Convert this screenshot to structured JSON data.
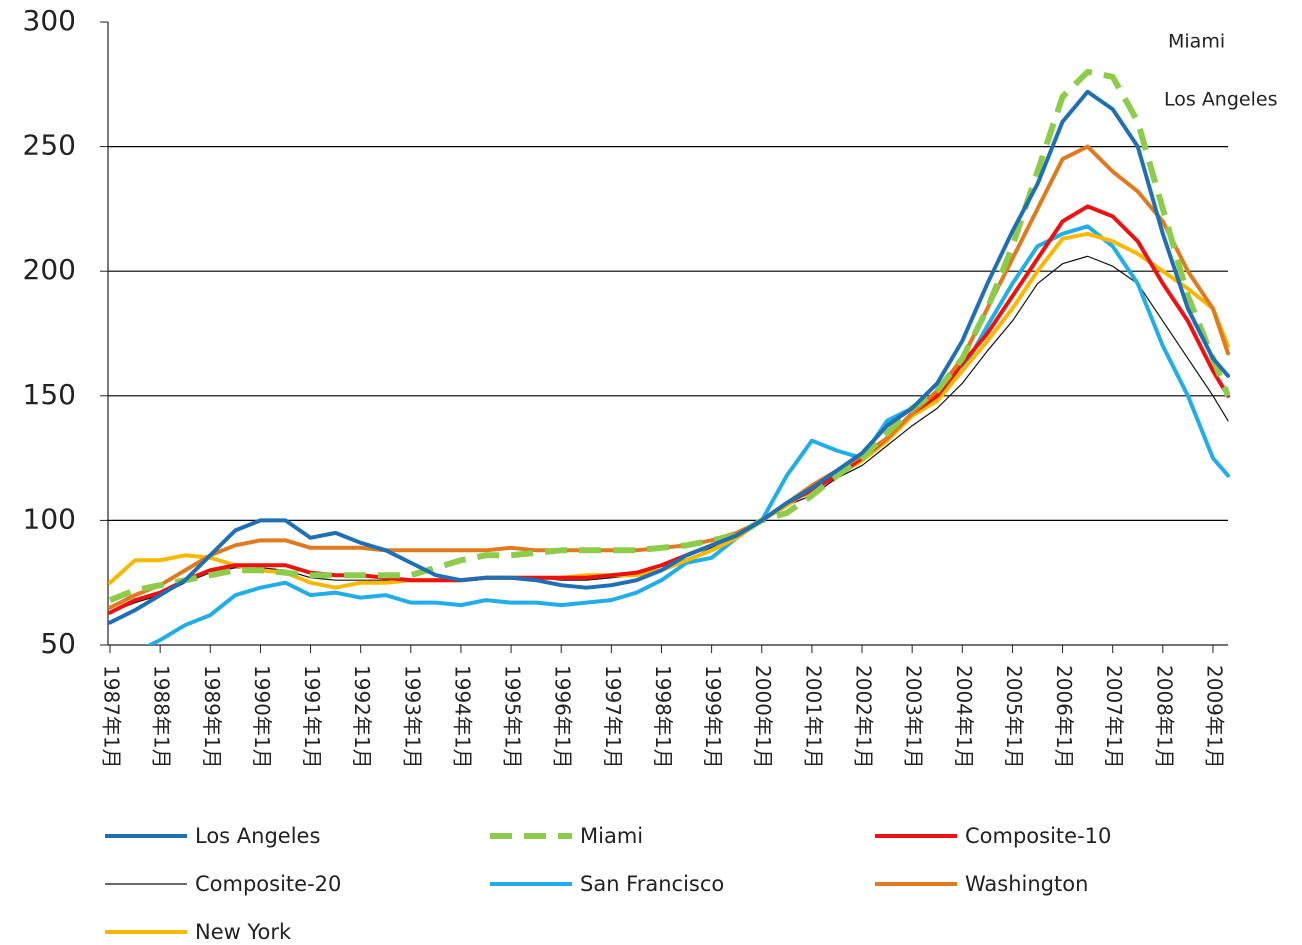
{
  "chart_data": {
    "type": "line",
    "annotations": [
      "Miami",
      "Los Angeles"
    ],
    "x": [
      1987,
      1987.5,
      1988,
      1988.5,
      1989,
      1989.5,
      1990,
      1990.5,
      1991,
      1991.5,
      1992,
      1992.5,
      1993,
      1993.5,
      1994,
      1994.5,
      1995,
      1995.5,
      1996,
      1996.5,
      1997,
      1997.5,
      1998,
      1998.5,
      1999,
      1999.5,
      2000,
      2000.5,
      2001,
      2001.5,
      2002,
      2002.5,
      2003,
      2003.5,
      2004,
      2004.5,
      2005,
      2005.5,
      2006,
      2006.5,
      2007,
      2007.5,
      2008,
      2008.5,
      2009,
      2009.3
    ],
    "series": [
      {
        "name": "Los Angeles",
        "color": "#1f6fb5",
        "width": 4,
        "dash": "",
        "values": [
          59,
          64,
          70,
          76,
          86,
          96,
          100,
          100,
          93,
          95,
          91,
          88,
          83,
          78,
          76,
          77,
          77,
          76,
          74,
          73,
          74,
          76,
          80,
          86,
          90,
          94,
          100,
          107,
          113,
          120,
          127,
          138,
          145,
          155,
          172,
          195,
          216,
          235,
          260,
          272,
          265,
          250,
          215,
          185,
          165,
          158
        ]
      },
      {
        "name": "Miami",
        "color": "#8ccc4a",
        "width": 6,
        "dash": "22 12",
        "values": [
          68,
          72,
          74,
          76,
          78,
          80,
          80,
          79,
          78,
          78,
          78,
          78,
          78,
          81,
          84,
          86,
          86,
          87,
          88,
          88,
          88,
          88,
          89,
          90,
          92,
          94,
          100,
          103,
          110,
          118,
          125,
          135,
          145,
          152,
          165,
          185,
          210,
          240,
          270,
          280,
          278,
          260,
          225,
          190,
          165,
          150
        ]
      },
      {
        "name": "Composite-10",
        "color": "#ee1111",
        "width": 4,
        "dash": "",
        "values": [
          63,
          68,
          71,
          76,
          80,
          82,
          82,
          82,
          79,
          78,
          78,
          77,
          76,
          76,
          76,
          77,
          77,
          77,
          77,
          77,
          78,
          79,
          82,
          86,
          90,
          94,
          100,
          107,
          112,
          118,
          125,
          133,
          143,
          150,
          163,
          175,
          190,
          205,
          220,
          226,
          222,
          212,
          195,
          180,
          160,
          150
        ]
      },
      {
        "name": "Composite-20",
        "color": "#111111",
        "width": 1.2,
        "dash": "",
        "values": [
          63,
          67,
          70,
          75,
          79,
          81,
          81,
          80,
          77,
          76,
          76,
          76,
          76,
          76,
          76,
          77,
          77,
          77,
          76,
          76,
          77,
          78,
          80,
          84,
          89,
          93,
          100,
          106,
          110,
          117,
          122,
          130,
          138,
          145,
          155,
          168,
          180,
          195,
          203,
          206,
          202,
          195,
          180,
          165,
          150,
          140
        ]
      },
      {
        "name": "San Francisco",
        "color": "#21aee8",
        "width": 4,
        "dash": "",
        "values": [
          null,
          47,
          52,
          58,
          62,
          70,
          73,
          75,
          70,
          71,
          69,
          70,
          67,
          67,
          66,
          68,
          67,
          67,
          66,
          67,
          68,
          71,
          76,
          83,
          85,
          93,
          100,
          118,
          132,
          128,
          125,
          140,
          145,
          150,
          160,
          178,
          195,
          210,
          215,
          218,
          210,
          195,
          170,
          150,
          125,
          118
        ]
      },
      {
        "name": "Washington",
        "color": "#e07a1e",
        "width": 4,
        "dash": "",
        "values": [
          65,
          70,
          74,
          80,
          86,
          90,
          92,
          92,
          89,
          89,
          89,
          88,
          88,
          88,
          88,
          88,
          89,
          88,
          88,
          88,
          88,
          88,
          89,
          90,
          92,
          95,
          100,
          107,
          114,
          120,
          126,
          133,
          143,
          152,
          165,
          185,
          205,
          225,
          245,
          250,
          240,
          232,
          220,
          200,
          185,
          167
        ]
      },
      {
        "name": "New York",
        "color": "#f9b800",
        "width": 4,
        "dash": "",
        "values": [
          75,
          84,
          84,
          86,
          85,
          82,
          80,
          79,
          75,
          73,
          75,
          75,
          76,
          76,
          76,
          77,
          77,
          77,
          77,
          78,
          78,
          78,
          80,
          84,
          88,
          93,
          100,
          106,
          113,
          118,
          124,
          132,
          142,
          148,
          160,
          172,
          185,
          200,
          213,
          215,
          212,
          207,
          200,
          193,
          185,
          170
        ]
      }
    ],
    "xlim": [
      1987,
      2009.3
    ],
    "xticks": [
      {
        "value": 1987,
        "label": "1987年1月"
      },
      {
        "value": 1988,
        "label": "1988年1月"
      },
      {
        "value": 1989,
        "label": "1989年1月"
      },
      {
        "value": 1990,
        "label": "1990年1月"
      },
      {
        "value": 1991,
        "label": "1991年1月"
      },
      {
        "value": 1992,
        "label": "1992年1月"
      },
      {
        "value": 1993,
        "label": "1993年1月"
      },
      {
        "value": 1994,
        "label": "1994年1月"
      },
      {
        "value": 1995,
        "label": "1995年1月"
      },
      {
        "value": 1996,
        "label": "1996年1月"
      },
      {
        "value": 1997,
        "label": "1997年1月"
      },
      {
        "value": 1998,
        "label": "1998年1月"
      },
      {
        "value": 1999,
        "label": "1999年1月"
      },
      {
        "value": 2000,
        "label": "2000年1月"
      },
      {
        "value": 2001,
        "label": "2001年1月"
      },
      {
        "value": 2002,
        "label": "2002年1月"
      },
      {
        "value": 2003,
        "label": "2003年1月"
      },
      {
        "value": 2004,
        "label": "2004年1月"
      },
      {
        "value": 2005,
        "label": "2005年1月"
      },
      {
        "value": 2006,
        "label": "2006年1月"
      },
      {
        "value": 2007,
        "label": "2007年1月"
      },
      {
        "value": 2008,
        "label": "2008年1月"
      },
      {
        "value": 2009,
        "label": "2009年1月"
      }
    ],
    "ylim": [
      50,
      300
    ],
    "yticks": [
      50,
      100,
      150,
      200,
      250,
      300
    ],
    "grid": true
  }
}
